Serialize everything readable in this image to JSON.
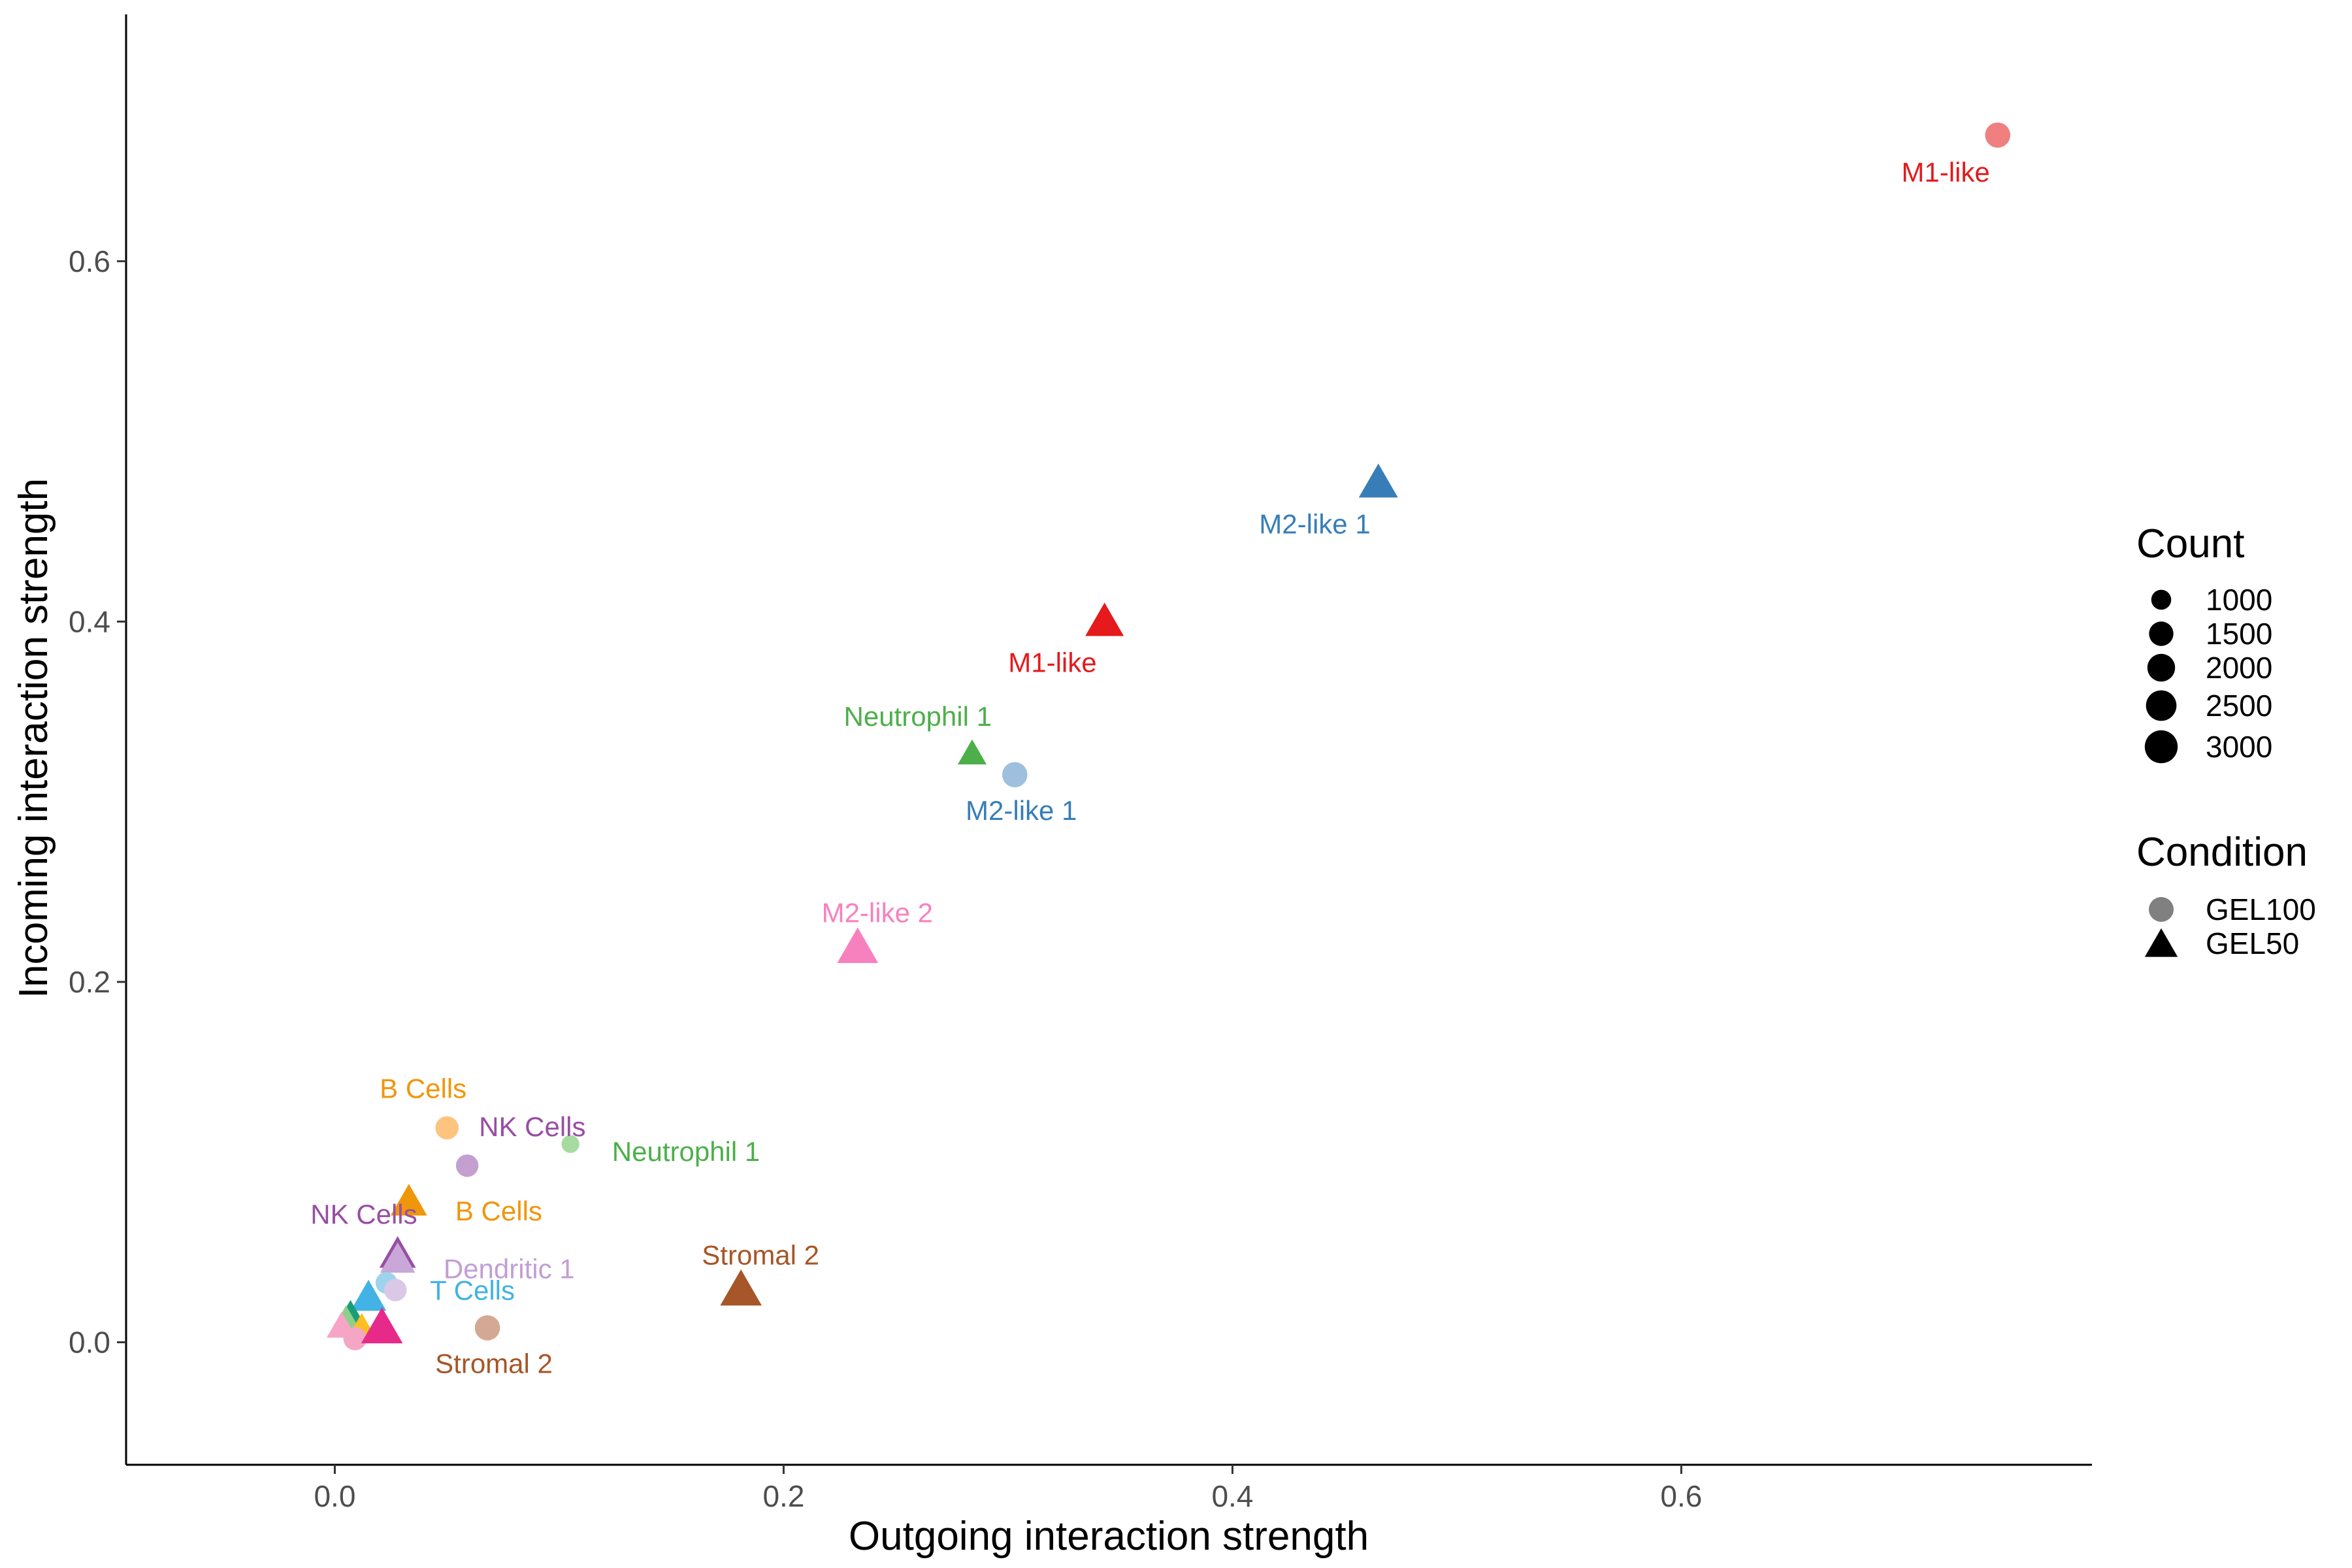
{
  "chart_data": {
    "type": "scatter",
    "title": "",
    "xlabel": "Outgoing interaction strength",
    "ylabel": "Incoming interaction strength",
    "xlim": [
      -0.093,
      0.783
    ],
    "ylim": [
      -0.068,
      0.737
    ],
    "x_ticks": [
      "0.0",
      "0.2",
      "0.4",
      "0.6"
    ],
    "x_tick_values": [
      0,
      0.2,
      0.4,
      0.6
    ],
    "y_ticks": [
      "0.0",
      "0.2",
      "0.4",
      "0.6"
    ],
    "y_tick_values": [
      0,
      0.2,
      0.4,
      0.6
    ],
    "grid": false,
    "legend_position": "right",
    "legend": {
      "count": {
        "title": "Count",
        "items": [
          {
            "label": "1000",
            "value": 1000
          },
          {
            "label": "1500",
            "value": 1500
          },
          {
            "label": "2000",
            "value": 2000
          },
          {
            "label": "2500",
            "value": 2500
          },
          {
            "label": "3000",
            "value": 3000
          }
        ]
      },
      "condition": {
        "title": "Condition",
        "items": [
          {
            "label": "GEL100",
            "shape": "circle"
          },
          {
            "label": "GEL50",
            "shape": "triangle"
          }
        ]
      }
    },
    "points": [
      {
        "x": 0.741,
        "y": 0.67,
        "shape": "circle",
        "color": "#F08080",
        "count": 1800,
        "label": "M1-like",
        "label_color": "#E41A1C",
        "label_pos": "below-left"
      },
      {
        "x": 0.465,
        "y": 0.476,
        "shape": "triangle",
        "color": "#377EB8",
        "count": 2600,
        "label": "M2-like 1",
        "label_color": "#377EB8",
        "label_pos": "below-left"
      },
      {
        "x": 0.343,
        "y": 0.399,
        "shape": "triangle",
        "color": "#E41A1C",
        "count": 2500,
        "label": "M1-like",
        "label_color": "#E41A1C",
        "label_pos": "below-left"
      },
      {
        "x": 0.284,
        "y": 0.326,
        "shape": "triangle",
        "color": "#4DAF4A",
        "count": 1300,
        "label": "Neutrophil 1",
        "label_color": "#4DAF4A",
        "label_pos": "above-left"
      },
      {
        "x": 0.303,
        "y": 0.315,
        "shape": "circle",
        "color": "#9EBFDD",
        "count": 1800,
        "label": "M2-like 1",
        "label_color": "#377EB8",
        "label_pos": "below"
      },
      {
        "x": 0.233,
        "y": 0.218,
        "shape": "triangle",
        "color": "#F781BF",
        "count": 2900,
        "label": "M2-like 2",
        "label_color": "#F781BF",
        "label_pos": "above"
      },
      {
        "x": 0.05,
        "y": 0.119,
        "shape": "circle",
        "color": "#FDC480",
        "count": 1500,
        "label": "B Cells",
        "label_color": "#F0960A",
        "label_pos": "above-left"
      },
      {
        "x": 0.059,
        "y": 0.098,
        "shape": "circle",
        "color": "#C3A0CF",
        "count": 1400,
        "label": "NK Cells",
        "label_color": "#984EA3",
        "label_pos": "above-right"
      },
      {
        "x": 0.105,
        "y": 0.11,
        "shape": "circle",
        "color": "#A6DBA0",
        "count": 900,
        "label": "Neutrophil 1",
        "label_color": "#4DAF4A",
        "label_pos": "right"
      },
      {
        "x": 0.033,
        "y": 0.077,
        "shape": "triangle",
        "color": "#F0960A",
        "count": 2200,
        "label": "B Cells",
        "label_color": "#F0960A",
        "label_pos": "right"
      },
      {
        "x": 0.028,
        "y": 0.048,
        "shape": "triangle",
        "color": "#984EA3",
        "count": 2200,
        "label": "NK Cells",
        "label_color": "#984EA3",
        "label_pos": "above-left"
      },
      {
        "x": 0.028,
        "y": 0.045,
        "shape": "triangle",
        "color": "#C9A7D8",
        "count": 2000,
        "label": "Dendritic 1",
        "label_color": "#C29ED4",
        "label_pos": "right"
      },
      {
        "x": 0.181,
        "y": 0.028,
        "shape": "triangle",
        "color": "#A65628",
        "count": 3000,
        "label": "Stromal 2",
        "label_color": "#A65628",
        "label_pos": "above"
      },
      {
        "x": 0.068,
        "y": 0.008,
        "shape": "circle",
        "color": "#D3A994",
        "count": 1800,
        "label": "Stromal 2",
        "label_color": "#A65628",
        "label_pos": "below"
      },
      {
        "x": 0.023,
        "y": 0.033,
        "shape": "circle",
        "color": "#9DD3EC",
        "count": 1300,
        "label": "T Cells",
        "label_color": "#42B3E4",
        "label_pos": "right"
      },
      {
        "x": 0.027,
        "y": 0.029,
        "shape": "circle",
        "color": "#D9C8E6",
        "count": 1400,
        "label": "",
        "label_color": "",
        "label_pos": ""
      },
      {
        "x": 0.015,
        "y": 0.024,
        "shape": "triangle",
        "color": "#42B3E4",
        "count": 2100,
        "label": "",
        "label_color": "",
        "label_pos": ""
      },
      {
        "x": 0.007,
        "y": 0.013,
        "shape": "triangle",
        "color": "#1B9E77",
        "count": 2000,
        "label": "",
        "label_color": "",
        "label_pos": ""
      },
      {
        "x": 0.005,
        "y": 0.01,
        "shape": "triangle",
        "color": "#8ED08B",
        "count": 2000,
        "label": "",
        "label_color": "",
        "label_pos": ""
      },
      {
        "x": 0.003,
        "y": 0.008,
        "shape": "triangle",
        "color": "#F6A5C6",
        "count": 1400,
        "label": "",
        "label_color": "",
        "label_pos": ""
      },
      {
        "x": 0.012,
        "y": 0.006,
        "shape": "triangle",
        "color": "#FDBF22",
        "count": 1900,
        "label": "",
        "label_color": "",
        "label_pos": ""
      },
      {
        "x": 0.009,
        "y": 0.002,
        "shape": "circle",
        "color": "#F4A6C4",
        "count": 1500,
        "label": "",
        "label_color": "",
        "label_pos": ""
      },
      {
        "x": 0.021,
        "y": 0.007,
        "shape": "triangle",
        "color": "#E7298A",
        "count": 3000,
        "label": "",
        "label_color": "",
        "label_pos": ""
      }
    ]
  }
}
